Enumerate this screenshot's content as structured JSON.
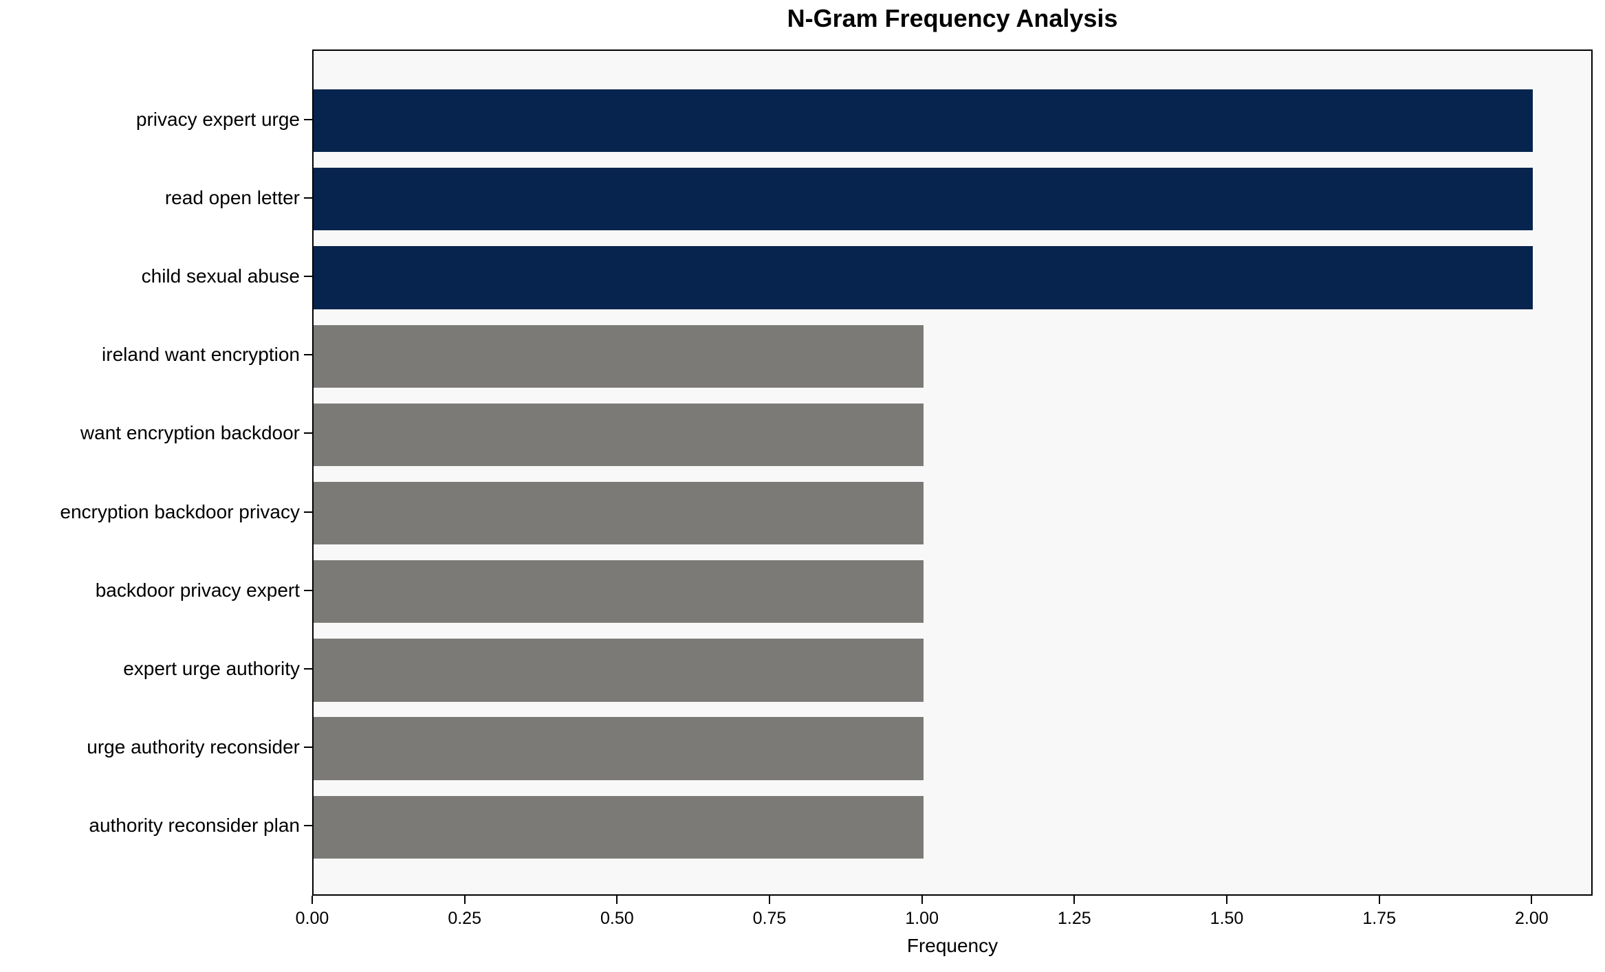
{
  "chart_data": {
    "type": "bar",
    "orientation": "horizontal",
    "title": "N-Gram Frequency Analysis",
    "xlabel": "Frequency",
    "ylabel": "",
    "categories": [
      "privacy expert urge",
      "read open letter",
      "child sexual abuse",
      "ireland want encryption",
      "want encryption backdoor",
      "encryption backdoor privacy",
      "backdoor privacy expert",
      "expert urge authority",
      "urge authority reconsider",
      "authority reconsider plan"
    ],
    "values": [
      2,
      2,
      2,
      1,
      1,
      1,
      1,
      1,
      1,
      1
    ],
    "bar_colors": [
      "#06244d",
      "#06244d",
      "#06244d",
      "#7b7a76",
      "#7b7a76",
      "#7b7a76",
      "#7b7a76",
      "#7b7a76",
      "#7b7a76",
      "#7b7a76"
    ],
    "xlim": [
      0,
      2.1
    ],
    "xticks": [
      0,
      0.25,
      0.5,
      0.75,
      1.0,
      1.25,
      1.5,
      1.75,
      2.0
    ],
    "xtick_labels": [
      "0.00",
      "0.25",
      "0.50",
      "0.75",
      "1.00",
      "1.25",
      "1.50",
      "1.75",
      "2.00"
    ],
    "grid": false,
    "legend_position": "none",
    "colors": {
      "highlight_bar": "#06244d",
      "normal_bar": "#7b7a76",
      "plot_background": "#f8f8f8",
      "figure_background": "#ffffff",
      "axis": "#000000",
      "text": "#000000"
    }
  }
}
